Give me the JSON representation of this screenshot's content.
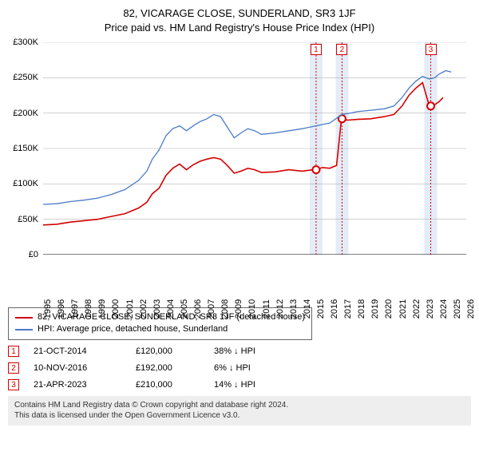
{
  "title": {
    "line1": "82, VICARAGE CLOSE, SUNDERLAND, SR3 1JF",
    "line2": "Price paid vs. HM Land Registry's House Price Index (HPI)"
  },
  "chart": {
    "type": "line",
    "ylim": [
      0,
      300000
    ],
    "ytick_step": 50000,
    "yticklabels": [
      "£0",
      "£50K",
      "£100K",
      "£150K",
      "£200K",
      "£250K",
      "£300K"
    ],
    "xlim": [
      1995,
      2026
    ],
    "xtick_step": 1,
    "xticklabels": [
      "1995",
      "1996",
      "1997",
      "1998",
      "1999",
      "2000",
      "2001",
      "2002",
      "2003",
      "2004",
      "2005",
      "2006",
      "2007",
      "2008",
      "2009",
      "2010",
      "2011",
      "2012",
      "2013",
      "2014",
      "2015",
      "2016",
      "2017",
      "2018",
      "2019",
      "2020",
      "2021",
      "2022",
      "2023",
      "2024",
      "2025",
      "2026"
    ],
    "grid_color": "#b5b5b5",
    "background_color": "#ffffff",
    "axis_color": "#000000",
    "label_fontsize": 11,
    "series": [
      {
        "name": "price_paid",
        "legend": "82, VICARAGE CLOSE, SUNDERLAND, SR3 1JF (detached house)",
        "color": "#d40000",
        "width": 1.6,
        "points": [
          [
            1995.0,
            42000
          ],
          [
            1996.0,
            43000
          ],
          [
            1997.0,
            46000
          ],
          [
            1998.0,
            48000
          ],
          [
            1999.0,
            50000
          ],
          [
            2000.0,
            54000
          ],
          [
            2001.0,
            58000
          ],
          [
            2002.0,
            66000
          ],
          [
            2002.6,
            74000
          ],
          [
            2003.0,
            86000
          ],
          [
            2003.5,
            94000
          ],
          [
            2004.0,
            112000
          ],
          [
            2004.5,
            122000
          ],
          [
            2005.0,
            128000
          ],
          [
            2005.5,
            120000
          ],
          [
            2006.0,
            127000
          ],
          [
            2006.5,
            132000
          ],
          [
            2007.0,
            135000
          ],
          [
            2007.5,
            137000
          ],
          [
            2008.0,
            135000
          ],
          [
            2008.5,
            126000
          ],
          [
            2009.0,
            115000
          ],
          [
            2009.5,
            118000
          ],
          [
            2010.0,
            122000
          ],
          [
            2010.5,
            120000
          ],
          [
            2011.0,
            116000
          ],
          [
            2012.0,
            117000
          ],
          [
            2013.0,
            120000
          ],
          [
            2014.0,
            118000
          ],
          [
            2014.8,
            120000
          ],
          [
            2015.5,
            123000
          ],
          [
            2016.0,
            122000
          ],
          [
            2016.5,
            126000
          ],
          [
            2016.86,
            192000
          ],
          [
            2017.3,
            190000
          ],
          [
            2018.0,
            191000
          ],
          [
            2019.0,
            192000
          ],
          [
            2020.0,
            195000
          ],
          [
            2020.7,
            198000
          ],
          [
            2021.3,
            210000
          ],
          [
            2021.8,
            225000
          ],
          [
            2022.3,
            235000
          ],
          [
            2022.8,
            243000
          ],
          [
            2023.3,
            210000
          ],
          [
            2023.7,
            212000
          ],
          [
            2024.0,
            216000
          ],
          [
            2024.3,
            222000
          ]
        ],
        "event_markers": [
          {
            "x": 2015.0,
            "y": 120000
          },
          {
            "x": 2016.9,
            "y": 192000
          },
          {
            "x": 2023.4,
            "y": 210000
          }
        ]
      },
      {
        "name": "hpi",
        "legend": "HPI: Average price, detached house, Sunderland",
        "color": "#4a7bc8",
        "width": 1.3,
        "points": [
          [
            1995.0,
            71000
          ],
          [
            1996.0,
            72000
          ],
          [
            1997.0,
            75000
          ],
          [
            1998.0,
            77000
          ],
          [
            1999.0,
            80000
          ],
          [
            2000.0,
            85000
          ],
          [
            2001.0,
            92000
          ],
          [
            2002.0,
            105000
          ],
          [
            2002.6,
            118000
          ],
          [
            2003.0,
            135000
          ],
          [
            2003.5,
            148000
          ],
          [
            2004.0,
            168000
          ],
          [
            2004.5,
            178000
          ],
          [
            2005.0,
            182000
          ],
          [
            2005.5,
            175000
          ],
          [
            2006.0,
            182000
          ],
          [
            2006.5,
            188000
          ],
          [
            2007.0,
            192000
          ],
          [
            2007.5,
            198000
          ],
          [
            2008.0,
            195000
          ],
          [
            2008.5,
            180000
          ],
          [
            2009.0,
            165000
          ],
          [
            2009.5,
            172000
          ],
          [
            2010.0,
            178000
          ],
          [
            2010.5,
            175000
          ],
          [
            2011.0,
            170000
          ],
          [
            2012.0,
            172000
          ],
          [
            2013.0,
            175000
          ],
          [
            2014.0,
            178000
          ],
          [
            2015.0,
            182000
          ],
          [
            2016.0,
            186000
          ],
          [
            2016.9,
            198000
          ],
          [
            2017.5,
            200000
          ],
          [
            2018.0,
            202000
          ],
          [
            2019.0,
            204000
          ],
          [
            2020.0,
            206000
          ],
          [
            2020.7,
            210000
          ],
          [
            2021.3,
            222000
          ],
          [
            2021.8,
            235000
          ],
          [
            2022.3,
            245000
          ],
          [
            2022.8,
            252000
          ],
          [
            2023.3,
            248000
          ],
          [
            2023.7,
            250000
          ],
          [
            2024.0,
            255000
          ],
          [
            2024.5,
            260000
          ],
          [
            2024.9,
            258000
          ]
        ]
      }
    ],
    "shade_bands": [
      {
        "x_center": 2015.0,
        "color": "#e3ecf7"
      },
      {
        "x_center": 2016.9,
        "color": "#e3ecf7"
      },
      {
        "x_center": 2023.4,
        "color": "#e3ecf7"
      }
    ],
    "vlines": [
      {
        "x": 2015.0,
        "color": "#d40000",
        "dash": "2,2"
      },
      {
        "x": 2016.9,
        "color": "#d40000",
        "dash": "2,2"
      },
      {
        "x": 2023.4,
        "color": "#d40000",
        "dash": "2,2"
      }
    ],
    "top_markers": [
      {
        "x": 2015.0,
        "label": "1",
        "border": "#d40000"
      },
      {
        "x": 2016.9,
        "label": "2",
        "border": "#d40000"
      },
      {
        "x": 2023.4,
        "label": "3",
        "border": "#d40000"
      }
    ]
  },
  "legend": {
    "border_color": "#666666"
  },
  "events": [
    {
      "n": "1",
      "date": "21-OCT-2014",
      "price": "£120,000",
      "delta": "38% ↓ HPI",
      "border": "#d40000"
    },
    {
      "n": "2",
      "date": "10-NOV-2016",
      "price": "£192,000",
      "delta": "6% ↓ HPI",
      "border": "#d40000"
    },
    {
      "n": "3",
      "date": "21-APR-2023",
      "price": "£210,000",
      "delta": "14% ↓ HPI",
      "border": "#d40000"
    }
  ],
  "footer": {
    "line1": "Contains HM Land Registry data © Crown copyright and database right 2024.",
    "line2": "This data is licensed under the Open Government Licence v3.0.",
    "bg": "#eeeeee"
  }
}
